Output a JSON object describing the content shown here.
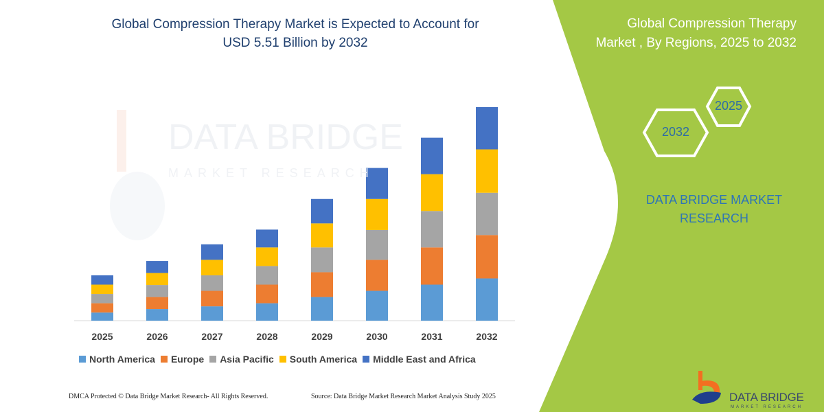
{
  "title_line1": "Global Compression Therapy Market is Expected to Account for",
  "title_line2": "USD 5.51 Billion by 2032",
  "panel": {
    "title_line1": "Global  Compression Therapy",
    "title_line2": "Market , By Regions, 2025 to 2032",
    "hex_top": "2025",
    "hex_bottom": "2032",
    "brand_line1": "DATA BRIDGE MARKET",
    "brand_line2": "RESEARCH",
    "green": "#a4c845"
  },
  "logo": {
    "name": "DATA BRIDGE",
    "sub": "MARKET RESEARCH"
  },
  "watermark": {
    "name": "DATA BRIDGE",
    "sub": "MARKET RESEARCH"
  },
  "footer": {
    "left": "DMCA Protected © Data Bridge Market Research- All Rights Reserved.",
    "right": "Source: Data Bridge Market Research Market Analysis Study 2025"
  },
  "chart_data": {
    "type": "bar",
    "stacked": true,
    "title": "Global Compression Therapy Market is Expected to Account for USD 5.51 Billion by 2032",
    "xlabel": "",
    "ylabel": "",
    "y_axis_shown": false,
    "grid": false,
    "legend_position": "bottom",
    "categories": [
      "2025",
      "2026",
      "2027",
      "2028",
      "2029",
      "2030",
      "2031",
      "2032"
    ],
    "series": [
      {
        "name": "North America",
        "color": "#5b9bd5",
        "values": [
          0.21,
          0.3,
          0.37,
          0.45,
          0.61,
          0.77,
          0.93,
          1.09
        ]
      },
      {
        "name": "Europe",
        "color": "#ed7d31",
        "values": [
          0.24,
          0.31,
          0.4,
          0.48,
          0.64,
          0.8,
          0.96,
          1.12
        ]
      },
      {
        "name": "Asia Pacific",
        "color": "#a5a5a5",
        "values": [
          0.24,
          0.31,
          0.4,
          0.48,
          0.64,
          0.77,
          0.94,
          1.09
        ]
      },
      {
        "name": "South America",
        "color": "#ffc000",
        "values": [
          0.24,
          0.31,
          0.4,
          0.48,
          0.62,
          0.8,
          0.95,
          1.12
        ]
      },
      {
        "name": "Middle East and Africa",
        "color": "#4472c4",
        "values": [
          0.24,
          0.31,
          0.4,
          0.46,
          0.63,
          0.8,
          0.94,
          1.09
        ]
      }
    ]
  }
}
